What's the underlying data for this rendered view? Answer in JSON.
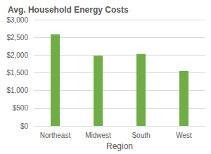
{
  "chart_data": {
    "type": "bar",
    "title": "Avg. Household Energy Costs",
    "x_label": "Region",
    "categories": [
      "Northeast",
      "Midwest",
      "South",
      "West"
    ],
    "values": [
      2590,
      1980,
      2030,
      1550
    ],
    "color": "#70ad47",
    "ylim": [
      0,
      3000
    ],
    "yticks": [
      {
        "value": 0,
        "label": "$0"
      },
      {
        "value": 500,
        "label": "$500"
      },
      {
        "value": 1000,
        "label": "$1,000"
      },
      {
        "value": 1500,
        "label": "$1,500"
      },
      {
        "value": 2000,
        "label": "$2,000"
      },
      {
        "value": 2500,
        "label": "$2,500"
      },
      {
        "value": 3000,
        "label": "$3,000"
      }
    ],
    "grid": true
  }
}
